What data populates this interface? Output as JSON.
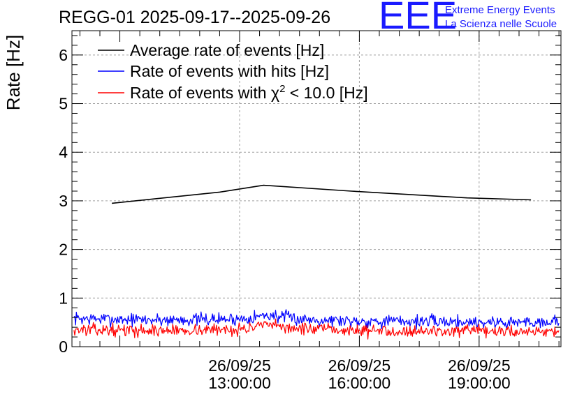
{
  "title": "REGG-01 2025-09-17--2025-09-26",
  "logo": {
    "mark": "EEE",
    "line1": "Extreme Energy Events",
    "line2": "La Scienza nelle Scuole",
    "color": "#1a1aff"
  },
  "chart_data": {
    "type": "line",
    "title": "REGG-01 2025-09-17--2025-09-26",
    "xlabel": "",
    "ylabel": "Rate [Hz]",
    "x_unit": "hours",
    "xlim": [
      8.8,
      21.05
    ],
    "ylim": [
      0,
      6.5
    ],
    "grid": true,
    "legend_position": "top-left",
    "x_ticks": [
      {
        "x": 13,
        "date": "26/09/25",
        "time": "13:00:00"
      },
      {
        "x": 16,
        "date": "26/09/25",
        "time": "16:00:00"
      },
      {
        "x": 19,
        "date": "26/09/25",
        "time": "19:00:00"
      }
    ],
    "y_ticks": [
      {
        "value": 0,
        "label": "0"
      },
      {
        "value": 1,
        "label": "1"
      },
      {
        "value": 2,
        "label": "2"
      },
      {
        "value": 3,
        "label": "3"
      },
      {
        "value": 4,
        "label": "4"
      },
      {
        "value": 5,
        "label": "5"
      },
      {
        "value": 6,
        "label": "6"
      }
    ],
    "series": [
      {
        "name": "Average rate of events [Hz]",
        "color": "#000000",
        "x": [
          9.8,
          12.5,
          13.6,
          15.8,
          18.7,
          20.3
        ],
        "y": [
          2.95,
          3.18,
          3.32,
          3.2,
          3.06,
          3.02
        ]
      },
      {
        "name": "Rate of events with hits [Hz]",
        "color": "#0000ff",
        "noisy": true,
        "x_start": 8.85,
        "x_end": 21.0,
        "n_points": 600,
        "noise_amp": 0.11,
        "seed": 7,
        "x": [
          8.85,
          11.0,
          13.0,
          13.7,
          14.5,
          16.0,
          18.0,
          19.5,
          21.0
        ],
        "y": [
          0.58,
          0.55,
          0.57,
          0.65,
          0.57,
          0.53,
          0.52,
          0.5,
          0.52
        ]
      },
      {
        "name": "Rate of events with",
        "name_math": "χ",
        "name_sup": "2",
        "name_tail": " < 10.0 [Hz]",
        "color": "#ff0000",
        "noisy": true,
        "x_start": 8.85,
        "x_end": 21.0,
        "n_points": 600,
        "noise_amp": 0.1,
        "seed": 13,
        "x": [
          8.85,
          11.0,
          13.0,
          13.7,
          14.5,
          16.0,
          18.0,
          19.5,
          21.0
        ],
        "y": [
          0.35,
          0.33,
          0.36,
          0.44,
          0.37,
          0.33,
          0.32,
          0.31,
          0.33
        ]
      }
    ]
  }
}
